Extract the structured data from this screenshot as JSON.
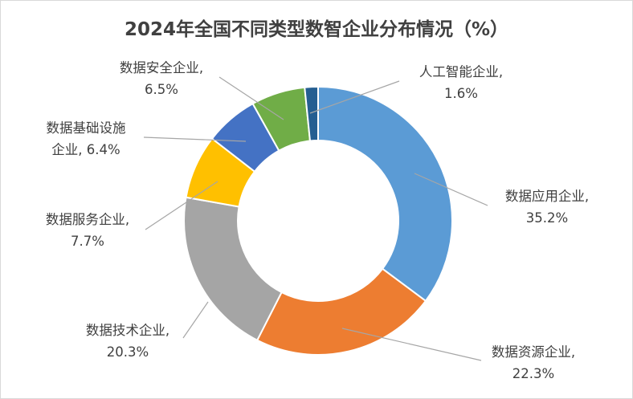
{
  "chart_data": {
    "type": "pie",
    "variant": "donut",
    "title": "2024年全国不同类型数智企业分布情况（%）",
    "unit": "%",
    "legend": "none",
    "slices": [
      {
        "name": "数据应用企业",
        "value": 35.2,
        "line1": "数据应用企业,",
        "line2": "35.2%",
        "color": "#5B9BD5"
      },
      {
        "name": "数据资源企业",
        "value": 22.3,
        "line1": "数据资源企业,",
        "line2": "22.3%",
        "color": "#ED7D31"
      },
      {
        "name": "数据技术企业",
        "value": 20.3,
        "line1": "数据技术企业,",
        "line2": "20.3%",
        "color": "#A5A5A5"
      },
      {
        "name": "数据服务企业",
        "value": 7.7,
        "line1": "数据服务企业,",
        "line2": "7.7%",
        "color": "#FFC000"
      },
      {
        "name": "数据基础设施企业",
        "value": 6.4,
        "line1": "数据基础设施",
        "line2": "企业, 6.4%",
        "color": "#4472C4"
      },
      {
        "name": "数据安全企业",
        "value": 6.5,
        "line1": "数据安全企业,",
        "line2": "6.5%",
        "color": "#70AD47"
      },
      {
        "name": "人工智能企业",
        "value": 1.6,
        "line1": "人工智能企业,",
        "line2": "1.6%",
        "color": "#255E91"
      }
    ]
  }
}
